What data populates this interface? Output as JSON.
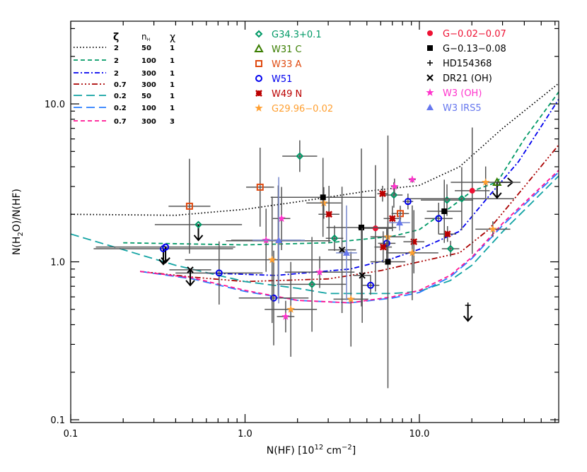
{
  "chart_data": {
    "type": "scatter",
    "xlabel": {
      "main": "N(HF) [10",
      "sup1": "12",
      "mid": " cm",
      "sup2": "−2",
      "end": "]"
    },
    "ylabel": {
      "a": "N(H",
      "sub": "2",
      "b": "O)/N(HF)"
    },
    "xscale": "log",
    "yscale": "log",
    "xlim": [
      0.1,
      63
    ],
    "ylim": [
      0.096,
      33.4
    ],
    "x_tick_labels": [
      "0.1",
      "1.0",
      "10.0"
    ],
    "y_tick_labels": [
      "0.1",
      "1.0",
      "10.0"
    ],
    "x_ticks": [
      0.1,
      1,
      10
    ],
    "y_ticks": [
      0.1,
      1,
      10
    ],
    "grid": false,
    "model_legend": {
      "headers": {
        "zeta": "ζ",
        "nH": "n",
        "nH_sub": "H",
        "chi": "χ"
      },
      "placement": "top-left"
    },
    "models": [
      {
        "zeta": "2",
        "nH": "50",
        "chi": "1",
        "color": "#000000",
        "dash": "dotted",
        "points": [
          [
            0.1,
            2.0
          ],
          [
            0.4,
            1.97
          ],
          [
            1,
            2.15
          ],
          [
            2,
            2.4
          ],
          [
            5,
            2.8
          ],
          [
            10,
            3.05
          ],
          [
            17,
            4.0
          ],
          [
            30,
            7.0
          ],
          [
            63,
            13.5
          ]
        ]
      },
      {
        "zeta": "2",
        "nH": "100",
        "chi": "1",
        "color": "#009966",
        "dash": "dashed",
        "points": [
          [
            0.2,
            1.32
          ],
          [
            1,
            1.28
          ],
          [
            3,
            1.32
          ],
          [
            7,
            1.45
          ],
          [
            10,
            1.6
          ],
          [
            15,
            2.2
          ],
          [
            20,
            2.8
          ],
          [
            28,
            3.2
          ],
          [
            40,
            6
          ],
          [
            63,
            11.9
          ]
        ]
      },
      {
        "zeta": "2",
        "nH": "300",
        "chi": "1",
        "color": "#0000ee",
        "dash": "dashdot",
        "points": [
          [
            0.6,
            0.85
          ],
          [
            1.5,
            0.82
          ],
          [
            4,
            0.9
          ],
          [
            7,
            1.05
          ],
          [
            10,
            1.2
          ],
          [
            17,
            1.56
          ],
          [
            25,
            2.6
          ],
          [
            37,
            4.3
          ],
          [
            63,
            10.7
          ]
        ]
      },
      {
        "zeta": "0.7",
        "nH": "300",
        "chi": "1",
        "color": "#aa0000",
        "dash": "dashdotdotdot",
        "points": [
          [
            0.25,
            0.87
          ],
          [
            0.5,
            0.8
          ],
          [
            1,
            0.75
          ],
          [
            3,
            0.78
          ],
          [
            6,
            0.88
          ],
          [
            10,
            1.0
          ],
          [
            17,
            1.14
          ],
          [
            25,
            1.6
          ],
          [
            35,
            2.5
          ],
          [
            63,
            5.5
          ]
        ]
      },
      {
        "zeta": "0.2",
        "nH": "50",
        "chi": "1",
        "color": "#11a3a3",
        "dash": "longdash",
        "points": [
          [
            0.1,
            1.5
          ],
          [
            0.4,
            0.95
          ],
          [
            1,
            0.75
          ],
          [
            2,
            0.68
          ],
          [
            3,
            0.63
          ],
          [
            7,
            0.63
          ],
          [
            10,
            0.65
          ],
          [
            15,
            0.76
          ],
          [
            20,
            0.95
          ],
          [
            30,
            1.55
          ],
          [
            63,
            3.5
          ]
        ]
      },
      {
        "zeta": "0.2",
        "nH": "100",
        "chi": "1",
        "color": "#2a7fff",
        "dash": "longdash",
        "points": [
          [
            0.25,
            0.87
          ],
          [
            0.5,
            0.78
          ],
          [
            1,
            0.65
          ],
          [
            2,
            0.57
          ],
          [
            4,
            0.55
          ],
          [
            7,
            0.59
          ],
          [
            10,
            0.64
          ],
          [
            15,
            0.8
          ],
          [
            20,
            1.05
          ],
          [
            30,
            1.7
          ],
          [
            63,
            3.7
          ]
        ]
      },
      {
        "zeta": "0.7",
        "nH": "300",
        "chi": "3",
        "color": "#ff1493",
        "dash": "dashed",
        "points": [
          [
            0.25,
            0.87
          ],
          [
            0.5,
            0.79
          ],
          [
            1,
            0.66
          ],
          [
            2,
            0.57
          ],
          [
            4,
            0.55
          ],
          [
            7,
            0.6
          ],
          [
            10,
            0.66
          ],
          [
            15,
            0.82
          ],
          [
            20,
            1.07
          ],
          [
            30,
            1.75
          ],
          [
            63,
            3.8
          ]
        ]
      }
    ],
    "source_legend_placement": "top-center",
    "sources": [
      {
        "name": "G34.3+0.1",
        "color": "#009966",
        "marker": "diamond",
        "points": [
          [
            2.06,
            4.67,
            0.1,
            0.1
          ],
          [
            0.54,
            1.72,
            0.25,
            0,
            "upper"
          ],
          [
            3.26,
            1.41,
            0.05,
            0.08
          ],
          [
            2.42,
            0.72,
            0.2,
            0.3
          ],
          [
            7.14,
            2.65,
            0.05,
            0.08
          ],
          [
            14.4,
            2.46,
            0.15,
            0.1
          ],
          [
            17.5,
            2.51,
            0.3,
            0.2
          ],
          [
            15.1,
            1.21,
            0.05,
            0.05
          ]
        ]
      },
      {
        "name": "W31  C",
        "color": "#3a7d00",
        "marker": "triangle",
        "points": [
          [
            27.9,
            3.19,
            0,
            0,
            "upper-lower"
          ]
        ]
      },
      {
        "name": "W33  A",
        "color": "#e04a10",
        "marker": "square",
        "points": [
          [
            1.22,
            2.97,
            0.08,
            0.25
          ],
          [
            0.48,
            2.25,
            0.12,
            0.3
          ],
          [
            7.77,
            2.02,
            0.05,
            0.05
          ]
        ]
      },
      {
        "name": "W51",
        "color": "#0000ee",
        "marker": "circle",
        "points": [
          [
            0.34,
            1.21,
            0.4,
            0,
            "upper"
          ],
          [
            0.35,
            1.24,
            0.4,
            0,
            "upper"
          ],
          [
            0.71,
            0.85,
            0.25,
            0.2
          ],
          [
            1.46,
            0.59,
            0.2,
            0.3
          ],
          [
            5.25,
            0.71,
            0.05,
            0.06
          ],
          [
            6.5,
            1.31,
            0.05,
            0.1
          ],
          [
            8.6,
            2.41,
            0.03,
            0.05
          ],
          [
            12.9,
            1.88,
            0.08,
            0.1
          ]
        ]
      },
      {
        "name": "W49  N",
        "color": "#bb0000",
        "marker": "xstar",
        "points": [
          [
            3.03,
            2.0,
            0.06,
            0.18
          ],
          [
            6.15,
            2.7,
            0.03,
            0.05
          ],
          [
            7.0,
            1.88,
            0.05,
            0.08
          ],
          [
            6.2,
            1.24,
            0.05,
            0.1
          ],
          [
            9.3,
            1.34,
            0.06,
            0.2
          ],
          [
            14.5,
            1.5,
            0.05,
            0.05
          ]
        ]
      },
      {
        "name": "G29.96−0.02",
        "color": "#ff9f30",
        "marker": "star",
        "points": [
          [
            2.83,
            2.36,
            0.1,
            0.1
          ],
          [
            1.43,
            1.03,
            0.5,
            0.4
          ],
          [
            1.55,
            1.36,
            0.3,
            0.35
          ],
          [
            1.83,
            0.5,
            0.15,
            0.3
          ],
          [
            4.05,
            0.58,
            0.1,
            0.3
          ],
          [
            6.6,
            1.44,
            0.1,
            0.1
          ],
          [
            9.1,
            1.14,
            0.15,
            0.3
          ],
          [
            24,
            3.19,
            0.2,
            0.1
          ],
          [
            26.4,
            1.61,
            0.1,
            0.05
          ]
        ]
      },
      {
        "name": "G−0.02−0.07",
        "color": "#ee1133",
        "marker": "dot",
        "points": [
          [
            5.6,
            1.63,
            0.1,
            0.4
          ],
          [
            20.1,
            2.82,
            0.1,
            0.4
          ]
        ]
      },
      {
        "name": "G−0.13−0.08",
        "color": "#000000",
        "marker": "filledsquare",
        "points": [
          [
            2.8,
            2.56,
            0.3,
            0.25
          ],
          [
            4.65,
            1.65,
            0.2,
            0.5
          ],
          [
            6.6,
            1.0,
            0.1,
            0.8
          ],
          [
            13.9,
            2.09,
            0.1,
            0.2
          ]
        ]
      },
      {
        "name": "HD154368",
        "color": "#000000",
        "marker": "plus",
        "points": [
          [
            19,
            0.53,
            0,
            0,
            "upper"
          ]
        ]
      },
      {
        "name": "DR21 (OH)",
        "color": "#000000",
        "marker": "cross",
        "points": [
          [
            0.485,
            0.89,
            0.12,
            0,
            "upper"
          ],
          [
            3.6,
            1.19,
            0.08,
            0.4
          ],
          [
            4.7,
            0.82,
            0.05,
            0.3
          ]
        ]
      },
      {
        "name": "W3 (OH)",
        "color": "#ff33cc",
        "marker": "star",
        "points": [
          [
            1.32,
            1.37,
            0.2,
            0.2
          ],
          [
            1.62,
            1.88,
            0.05,
            0.2
          ],
          [
            2.68,
            0.86,
            0.2,
            0.1
          ],
          [
            1.71,
            0.45,
            0.05,
            0.1
          ],
          [
            7.2,
            3.0,
            0.02,
            0.05
          ],
          [
            9.1,
            3.32,
            0.02,
            0.02
          ]
        ]
      },
      {
        "name": "W3 IRS5",
        "color": "#6677ee",
        "marker": "triangle-filled",
        "points": [
          [
            1.56,
            1.37,
            0.15,
            0.4
          ],
          [
            3.82,
            1.14,
            0.06,
            0.3
          ],
          [
            7.7,
            1.77,
            0.06,
            0.05
          ]
        ]
      }
    ]
  }
}
